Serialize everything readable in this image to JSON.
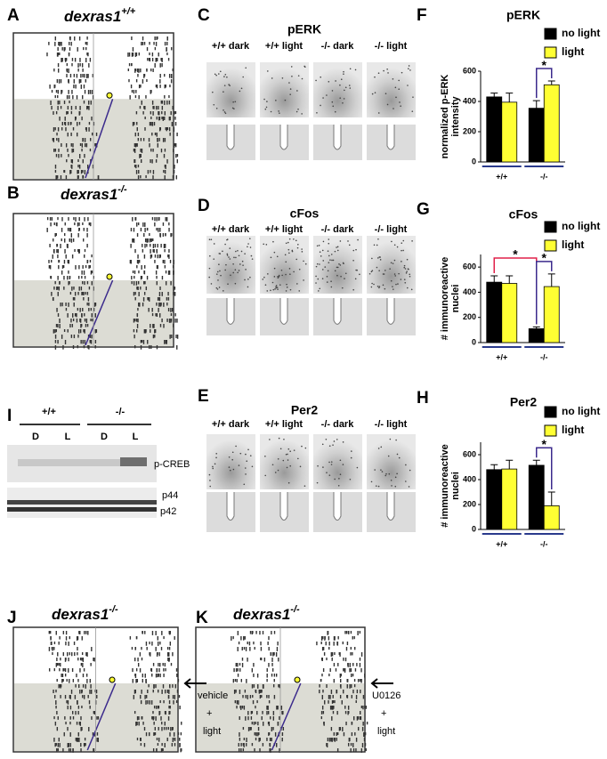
{
  "panels": {
    "A": {
      "label": "A",
      "gene": "dexras1",
      "genotype": "+/+"
    },
    "B": {
      "label": "B",
      "gene": "dexras1",
      "genotype": "-/-"
    },
    "C": {
      "label": "C",
      "title": "pERK",
      "columns": [
        "+/+ dark",
        "+/+ light",
        "-/- dark",
        "-/- light"
      ]
    },
    "D": {
      "label": "D",
      "title": "cFos",
      "columns": [
        "+/+ dark",
        "+/+ light",
        "-/- dark",
        "-/- light"
      ]
    },
    "E": {
      "label": "E",
      "title": "Per2",
      "columns": [
        "+/+ dark",
        "+/+ light",
        "-/- dark",
        "-/- light"
      ]
    },
    "I": {
      "label": "I",
      "groups": [
        "+/+",
        "-/-"
      ],
      "lanes": [
        "D",
        "L",
        "D",
        "L"
      ],
      "bands": [
        "p-CREB",
        "p44",
        "p42"
      ]
    },
    "J": {
      "label": "J",
      "gene": "dexras1",
      "genotype": "-/-",
      "treatment": [
        "vehicle",
        "+",
        "light"
      ]
    },
    "K": {
      "label": "K",
      "gene": "dexras1",
      "genotype": "-/-",
      "treatment": [
        "U0126",
        "+",
        "light"
      ]
    }
  },
  "chart_data": [
    {
      "type": "bar",
      "label": "F",
      "title": "pERK",
      "ylabel": [
        "normalized p-ERK",
        "intensity"
      ],
      "categories": [
        "+/+",
        "-/-"
      ],
      "series": [
        {
          "name": "no light",
          "color": "#000000",
          "values": [
            430,
            355
          ],
          "errors": [
            25,
            50
          ]
        },
        {
          "name": "light",
          "color": "#ffff33",
          "values": [
            395,
            510
          ],
          "errors": [
            60,
            25
          ]
        }
      ],
      "ylim": [
        0,
        600
      ],
      "yticks": [
        0,
        200,
        400,
        600
      ],
      "annotations": [
        {
          "text": "*",
          "color": "#3b2a8c"
        }
      ]
    },
    {
      "type": "bar",
      "label": "G",
      "title": "cFos",
      "ylabel": [
        "# immunoreactive",
        "nuclei"
      ],
      "categories": [
        "+/+",
        "-/-"
      ],
      "series": [
        {
          "name": "no light",
          "color": "#000000",
          "values": [
            480,
            110
          ],
          "errors": [
            50,
            15
          ]
        },
        {
          "name": "light",
          "color": "#ffff33",
          "values": [
            470,
            445
          ],
          "errors": [
            60,
            100
          ]
        }
      ],
      "ylim": [
        0,
        700
      ],
      "yticks": [
        0,
        200,
        400,
        600
      ],
      "annotations": [
        {
          "text": "*",
          "color": "#e0204a"
        },
        {
          "text": "*",
          "color": "#3b2a8c"
        }
      ]
    },
    {
      "type": "bar",
      "label": "H",
      "title": "Per2",
      "ylabel": [
        "# immunoreactive",
        "nuclei"
      ],
      "categories": [
        "+/+",
        "-/-"
      ],
      "series": [
        {
          "name": "no light",
          "color": "#000000",
          "values": [
            480,
            515
          ],
          "errors": [
            40,
            40
          ]
        },
        {
          "name": "light",
          "color": "#ffff33",
          "values": [
            485,
            190
          ],
          "errors": [
            70,
            110
          ]
        }
      ],
      "ylim": [
        0,
        700
      ],
      "yticks": [
        0,
        200,
        400,
        600
      ],
      "annotations": [
        {
          "text": "*",
          "color": "#3b2a8c"
        }
      ]
    }
  ]
}
